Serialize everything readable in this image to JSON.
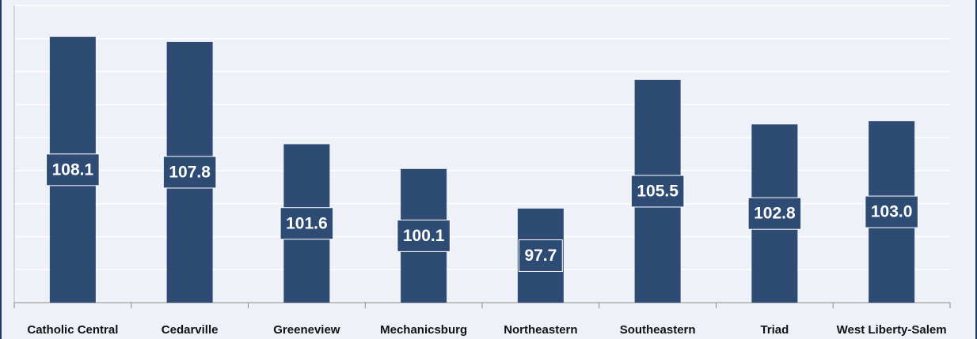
{
  "chart_data": {
    "type": "bar",
    "categories": [
      "Catholic Central",
      "Cedarville",
      "Greeneview",
      "Mechanicsburg",
      "Northeastern",
      "Southeastern",
      "Triad",
      "West Liberty-Salem"
    ],
    "values": [
      108.1,
      107.8,
      101.6,
      100.1,
      97.7,
      105.5,
      102.8,
      103.0
    ],
    "value_labels": [
      "108.1",
      "107.8",
      "101.6",
      "100.1",
      "97.7",
      "105.5",
      "102.8",
      "103.0"
    ],
    "color": "#2e4b73",
    "ylim": [
      92,
      110
    ],
    "yticks": [
      92,
      94,
      96,
      98,
      100,
      102,
      104,
      106,
      108,
      110
    ],
    "grid": true
  }
}
